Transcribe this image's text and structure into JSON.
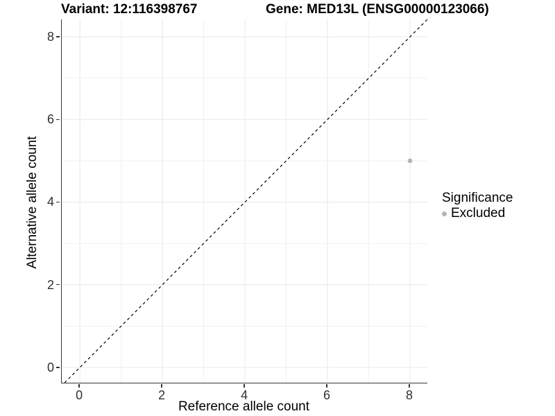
{
  "chart_data": {
    "type": "scatter",
    "title_left": "Variant: 12:116398767",
    "title_right": "Gene: MED13L (ENSG00000123066)",
    "xlabel": "Reference allele count",
    "ylabel": "Alternative allele count",
    "xticks": [
      0,
      2,
      4,
      6,
      8
    ],
    "yticks": [
      0,
      2,
      4,
      6,
      8
    ],
    "minor_gridlines": [
      1,
      3,
      5,
      7
    ],
    "xlim": [
      -0.44,
      8.42
    ],
    "ylim": [
      -0.37,
      8.42
    ],
    "grid": "major+minor",
    "points": [
      {
        "x": 8,
        "y": 5,
        "series": "Excluded"
      }
    ],
    "diagonal_line": {
      "slope": 1,
      "intercept": 0,
      "style": "dashed"
    },
    "legend": {
      "title": "Significance",
      "position": "right",
      "entries": [
        {
          "label": "Excluded",
          "color": "#b5b5b5"
        }
      ]
    },
    "colors": {
      "point": "#b5b5b5",
      "grid_major": "#e8e8e8",
      "grid_minor": "#f1f1f1",
      "axis_line": "#333333",
      "dashed_line": "#000000",
      "background": "#ffffff",
      "text": "#000000"
    }
  }
}
